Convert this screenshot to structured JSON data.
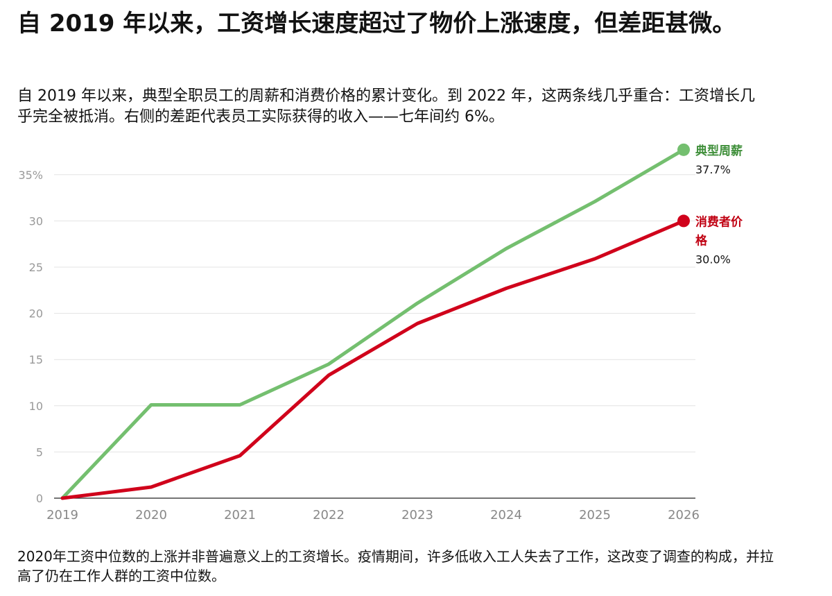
{
  "header": {
    "title": "自 2019 年以来，工资增长速度超过了物价上涨速度，但差距甚微。",
    "subtitle": "自 2019 年以来，典型全职员工的周薪和消费价格的累计变化。到 2022 年，这两条线几乎重合：工资增长几乎完全被抵消。右侧的差距代表员工实际获得的收入——七年间约 6%。"
  },
  "footer": {
    "note": "2020年工资中位数的上涨并非普遍意义上的工资增长。疫情期间，许多低收入工人失去了工作，这改变了调查的构成，并拉高了仍在工作人群的工资中位数。"
  },
  "chart_data": {
    "type": "line",
    "x": [
      2019,
      2020,
      2021,
      2022,
      2023,
      2024,
      2025,
      2026
    ],
    "x_tick_labels": [
      "2019",
      "2020",
      "2021",
      "2022",
      "2023",
      "2024",
      "2025",
      "2026"
    ],
    "y_ticks": [
      0,
      5,
      10,
      15,
      20,
      25,
      30,
      35
    ],
    "y_tick_labels": [
      "0",
      "5",
      "10",
      "15",
      "20",
      "25",
      "30",
      "35%"
    ],
    "ylim": [
      0,
      37.7
    ],
    "grid": true,
    "series": [
      {
        "name": "典型周薪",
        "name_lines": [
          "典型周薪"
        ],
        "value_label": "37.7%",
        "color": "#74bf6f",
        "values": [
          0,
          10.1,
          10.1,
          14.5,
          21.1,
          27.0,
          32.1,
          37.7
        ]
      },
      {
        "name": "消费者价格",
        "name_lines": [
          "消费者价",
          "格"
        ],
        "value_label": "30.0%",
        "color": "#d0021b",
        "values": [
          0,
          1.2,
          4.6,
          13.3,
          18.9,
          22.7,
          25.9,
          30.0
        ]
      }
    ],
    "label_colors": {
      "典型周薪": "#3f8f3a",
      "消费者价格": "#c00012"
    }
  }
}
